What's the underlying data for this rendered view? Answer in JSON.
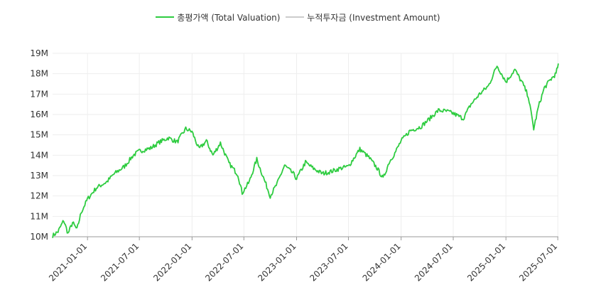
{
  "chart_data": {
    "type": "line",
    "legend": {
      "placement": "top-center",
      "items": [
        {
          "label": "총평가액 (Total Valuation)",
          "color": "#2ecc40"
        },
        {
          "label": "누적투자금 (Investment Amount)",
          "color": "#cccccc"
        }
      ]
    },
    "y_ticks": [
      "10M",
      "11M",
      "12M",
      "13M",
      "14M",
      "15M",
      "16M",
      "17M",
      "18M",
      "19M"
    ],
    "ylim": [
      10000000,
      19000000
    ],
    "x_ticks": [
      "2021-01-01",
      "2021-07-01",
      "2022-01-01",
      "2022-07-01",
      "2023-01-01",
      "2023-07-01",
      "2024-01-01",
      "2024-07-01",
      "2025-01-01",
      "2025-07-01"
    ],
    "xlim": [
      "2020-09-01",
      "2025-07-03"
    ],
    "grid": true,
    "series": [
      {
        "name": "총평가액 (Total Valuation)",
        "color": "#2ecc40",
        "points": [
          [
            "2020-09-01",
            10050000
          ],
          [
            "2020-09-20",
            10250000
          ],
          [
            "2020-10-10",
            10800000
          ],
          [
            "2020-10-25",
            10150000
          ],
          [
            "2020-11-10",
            10700000
          ],
          [
            "2020-11-25",
            10350000
          ],
          [
            "2020-12-10",
            11200000
          ],
          [
            "2021-01-01",
            11850000
          ],
          [
            "2021-02-01",
            12400000
          ],
          [
            "2021-03-10",
            12700000
          ],
          [
            "2021-04-01",
            13050000
          ],
          [
            "2021-05-10",
            13450000
          ],
          [
            "2021-06-10",
            14000000
          ],
          [
            "2021-07-01",
            14200000
          ],
          [
            "2021-08-10",
            14350000
          ],
          [
            "2021-09-10",
            14650000
          ],
          [
            "2021-10-10",
            14850000
          ],
          [
            "2021-11-10",
            14650000
          ],
          [
            "2021-12-10",
            15300000
          ],
          [
            "2022-01-01",
            15150000
          ],
          [
            "2022-01-25",
            14300000
          ],
          [
            "2022-02-20",
            14700000
          ],
          [
            "2022-03-15",
            14000000
          ],
          [
            "2022-04-10",
            14600000
          ],
          [
            "2022-05-10",
            13600000
          ],
          [
            "2022-06-10",
            13050000
          ],
          [
            "2022-06-25",
            12150000
          ],
          [
            "2022-07-20",
            12700000
          ],
          [
            "2022-08-15",
            13800000
          ],
          [
            "2022-09-10",
            12800000
          ],
          [
            "2022-10-01",
            12000000
          ],
          [
            "2022-10-25",
            12600000
          ],
          [
            "2022-11-20",
            13500000
          ],
          [
            "2022-12-20",
            13100000
          ],
          [
            "2023-01-01",
            12850000
          ],
          [
            "2023-02-01",
            13650000
          ],
          [
            "2023-03-01",
            13350000
          ],
          [
            "2023-04-01",
            13100000
          ],
          [
            "2023-05-01",
            13200000
          ],
          [
            "2023-06-01",
            13350000
          ],
          [
            "2023-07-01",
            13450000
          ],
          [
            "2023-08-10",
            14300000
          ],
          [
            "2023-09-10",
            13900000
          ],
          [
            "2023-10-10",
            13350000
          ],
          [
            "2023-10-30",
            12850000
          ],
          [
            "2023-11-20",
            13650000
          ],
          [
            "2023-12-10",
            14100000
          ],
          [
            "2024-01-01",
            14700000
          ],
          [
            "2024-02-01",
            15200000
          ],
          [
            "2024-03-10",
            15400000
          ],
          [
            "2024-04-10",
            15800000
          ],
          [
            "2024-05-10",
            16200000
          ],
          [
            "2024-06-10",
            16150000
          ],
          [
            "2024-07-01",
            16050000
          ],
          [
            "2024-08-05",
            15800000
          ],
          [
            "2024-09-01",
            16500000
          ],
          [
            "2024-10-01",
            17000000
          ],
          [
            "2024-11-01",
            17400000
          ],
          [
            "2024-12-01",
            18400000
          ],
          [
            "2025-01-01",
            17600000
          ],
          [
            "2025-02-01",
            18200000
          ],
          [
            "2025-03-01",
            17500000
          ],
          [
            "2025-03-20",
            16900000
          ],
          [
            "2025-04-08",
            15300000
          ],
          [
            "2025-04-25",
            16400000
          ],
          [
            "2025-05-15",
            17300000
          ],
          [
            "2025-06-05",
            17700000
          ],
          [
            "2025-06-25",
            18000000
          ],
          [
            "2025-07-03",
            18500000
          ]
        ]
      },
      {
        "name": "누적투자금 (Investment Amount)",
        "color": "#cccccc",
        "points": [
          [
            "2020-09-01",
            10000000
          ],
          [
            "2025-07-03",
            10000000
          ]
        ]
      }
    ]
  }
}
